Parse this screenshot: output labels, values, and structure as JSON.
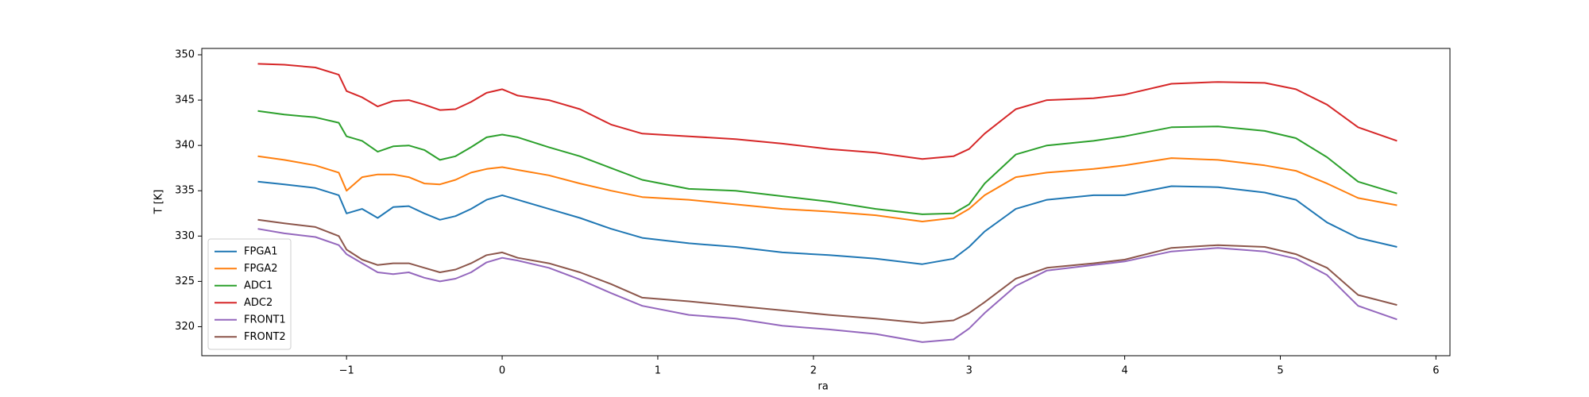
{
  "chart_data": {
    "type": "line",
    "xlabel": "ra",
    "ylabel": "T [K]",
    "x": [
      -1.57,
      -1.4,
      -1.2,
      -1.05,
      -1.0,
      -0.9,
      -0.8,
      -0.7,
      -0.6,
      -0.5,
      -0.4,
      -0.3,
      -0.2,
      -0.1,
      0.0,
      0.1,
      0.3,
      0.5,
      0.7,
      0.9,
      1.2,
      1.5,
      1.8,
      2.1,
      2.4,
      2.7,
      2.9,
      3.0,
      3.1,
      3.3,
      3.5,
      3.8,
      4.0,
      4.3,
      4.6,
      4.9,
      5.1,
      5.3,
      5.5,
      5.75
    ],
    "series": [
      {
        "name": "FPGA1",
        "color": "#1f77b4",
        "values": [
          336,
          335.7,
          335.3,
          334.5,
          332.5,
          333,
          332,
          333.2,
          333.3,
          332.5,
          331.8,
          332.2,
          333,
          334,
          334.5,
          334,
          333,
          332,
          330.8,
          329.8,
          329.2,
          328.8,
          328.2,
          327.9,
          327.5,
          326.9,
          327.5,
          328.8,
          330.5,
          333,
          334,
          334.5,
          334.5,
          335.5,
          335.4,
          334.8,
          334,
          331.5,
          329.8,
          328.8
        ]
      },
      {
        "name": "FPGA2",
        "color": "#ff7f0e",
        "values": [
          338.8,
          338.4,
          337.8,
          337,
          335,
          336.5,
          336.8,
          336.8,
          336.5,
          335.8,
          335.7,
          336.2,
          337,
          337.4,
          337.6,
          337.3,
          336.7,
          335.8,
          335,
          334.3,
          334,
          333.5,
          333,
          332.7,
          332.3,
          331.6,
          332,
          333,
          334.5,
          336.5,
          337,
          337.4,
          337.8,
          338.6,
          338.4,
          337.8,
          337.2,
          335.8,
          334.2,
          333.4
        ]
      },
      {
        "name": "ADC1",
        "color": "#2ca02c",
        "values": [
          343.8,
          343.4,
          343.1,
          342.5,
          341,
          340.5,
          339.3,
          339.9,
          340,
          339.5,
          338.4,
          338.8,
          339.8,
          340.9,
          341.2,
          340.9,
          339.8,
          338.8,
          337.5,
          336.2,
          335.2,
          335,
          334.4,
          333.8,
          333,
          332.4,
          332.5,
          333.5,
          335.8,
          339,
          340,
          340.5,
          341,
          342,
          342.1,
          341.6,
          340.8,
          338.7,
          336,
          334.7
        ]
      },
      {
        "name": "ADC2",
        "color": "#d62728",
        "values": [
          349,
          348.9,
          348.6,
          347.8,
          346,
          345.3,
          344.3,
          344.9,
          345,
          344.5,
          343.9,
          344,
          344.8,
          345.8,
          346.2,
          345.5,
          345,
          344,
          342.3,
          341.3,
          341,
          340.7,
          340.2,
          339.6,
          339.2,
          338.5,
          338.8,
          339.6,
          341.3,
          344,
          345,
          345.2,
          345.6,
          346.8,
          347,
          346.9,
          346.2,
          344.5,
          342,
          340.5
        ]
      },
      {
        "name": "FRONT1",
        "color": "#9467bd",
        "values": [
          330.8,
          330.3,
          329.9,
          329,
          328,
          327,
          326,
          325.8,
          326,
          325.4,
          325,
          325.3,
          326,
          327.1,
          327.6,
          327.3,
          326.5,
          325.2,
          323.7,
          322.3,
          321.3,
          320.9,
          320.1,
          319.7,
          319.2,
          318.3,
          318.6,
          319.8,
          321.5,
          324.5,
          326.2,
          326.8,
          327.2,
          328.3,
          328.7,
          328.3,
          327.5,
          325.7,
          322.3,
          320.8
        ]
      },
      {
        "name": "FRONT2",
        "color": "#8c564b",
        "values": [
          331.8,
          331.4,
          331,
          330,
          328.5,
          327.4,
          326.8,
          327,
          327,
          326.5,
          326,
          326.3,
          327,
          327.9,
          328.2,
          327.6,
          327,
          326,
          324.7,
          323.2,
          322.8,
          322.3,
          321.8,
          321.3,
          320.9,
          320.4,
          320.7,
          321.5,
          322.7,
          325.3,
          326.5,
          327,
          327.4,
          328.7,
          329,
          328.8,
          328,
          326.5,
          323.5,
          322.4
        ]
      }
    ],
    "xlim": [
      -1.93,
      6.09
    ],
    "xticks": [
      {
        "value": -1,
        "label": "−1"
      },
      0,
      1,
      2,
      3,
      4,
      5,
      6
    ],
    "ylim": [
      316.8,
      350.7
    ],
    "yticks": [
      320,
      325,
      330,
      335,
      340,
      345,
      350
    ],
    "grid": false,
    "legend": "lower-left"
  }
}
